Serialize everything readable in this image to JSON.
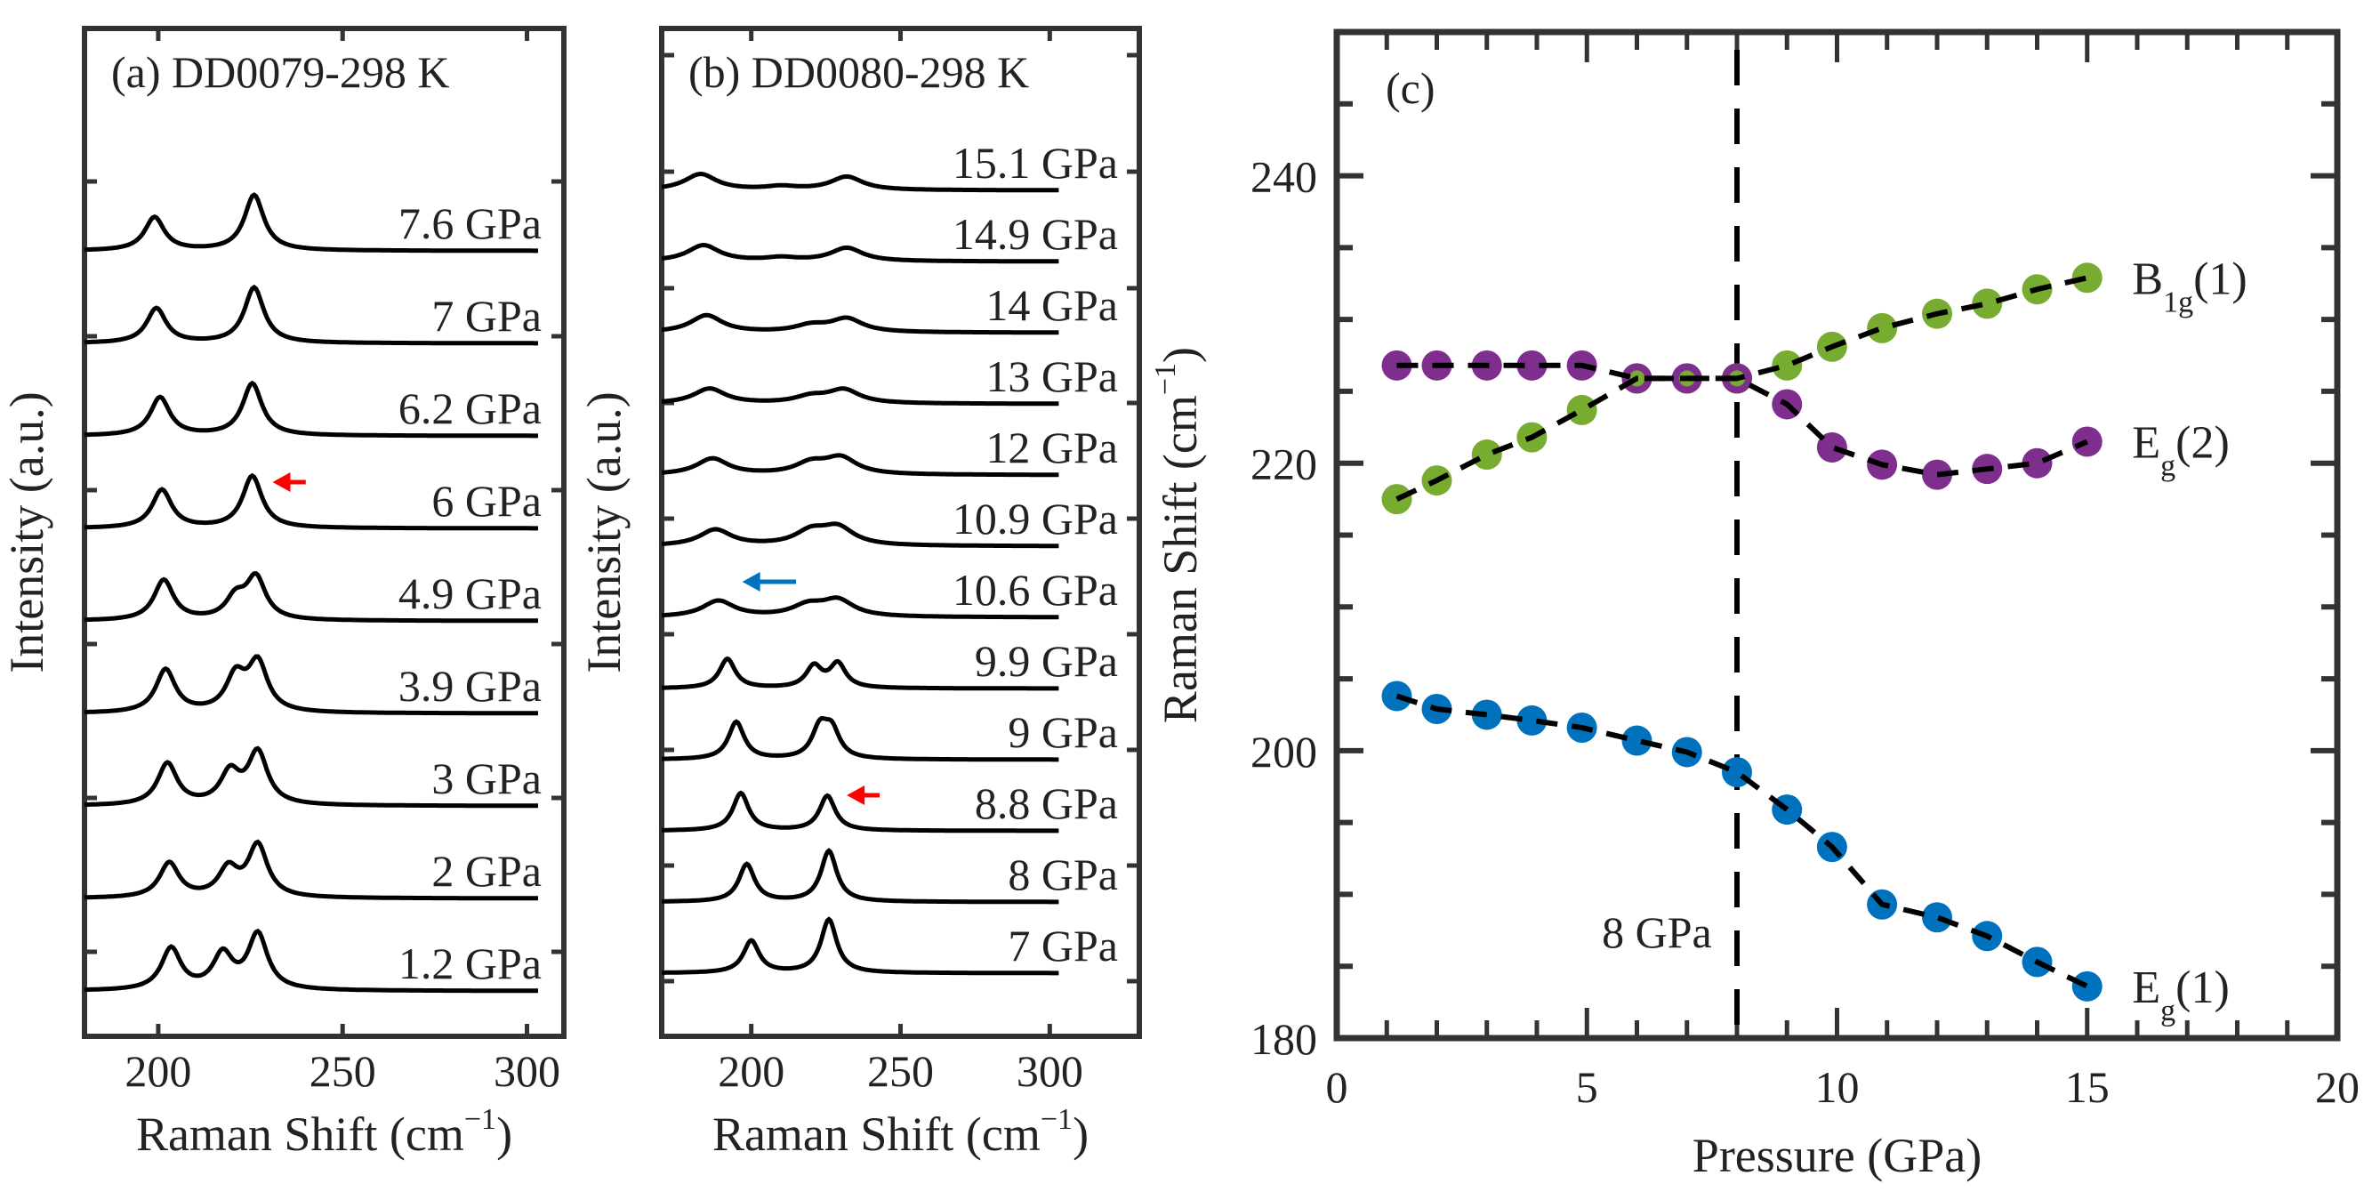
{
  "chart_data": [
    {
      "panel": "a",
      "type": "line",
      "title": "(a) DD0079-298 K",
      "xlabel": "Raman Shift (cm",
      "xlabel_sup": "−1",
      "xlabel_end": ")",
      "ylabel": "Intensity (a.u.)",
      "xlim": [
        180,
        310
      ],
      "xticks": [
        200,
        250,
        300
      ],
      "spectra": [
        {
          "label": "7.6 GPa",
          "peaks": [
            [
              199,
              0.48
            ],
            [
              226,
              0.8
            ]
          ]
        },
        {
          "label": "7 GPa",
          "peaks": [
            [
              199.5,
              0.5
            ],
            [
              226,
              0.8
            ]
          ]
        },
        {
          "label": "6.2 GPa",
          "peaks": [
            [
              200.5,
              0.55
            ],
            [
              225.5,
              0.75
            ]
          ]
        },
        {
          "label": "6 GPa",
          "peaks": [
            [
              201,
              0.55
            ],
            [
              225.5,
              0.75
            ]
          ]
        },
        {
          "label": "4.9 GPa",
          "peaks": [
            [
              201.5,
              0.58
            ],
            [
              221,
              0.3
            ],
            [
              226.5,
              0.6
            ]
          ]
        },
        {
          "label": "3.9 GPa",
          "peaks": [
            [
              202,
              0.62
            ],
            [
              221,
              0.5
            ],
            [
              227,
              0.7
            ]
          ]
        },
        {
          "label": "3 GPa",
          "peaks": [
            [
              202.5,
              0.6
            ],
            [
              219.5,
              0.45
            ],
            [
              227,
              0.75
            ]
          ]
        },
        {
          "label": "2 GPa",
          "peaks": [
            [
              203,
              0.5
            ],
            [
              219,
              0.4
            ],
            [
              227,
              0.75
            ]
          ]
        },
        {
          "label": "1.2 GPa",
          "peaks": [
            [
              203.5,
              0.6
            ],
            [
              217.5,
              0.5
            ],
            [
              227,
              0.8
            ]
          ]
        }
      ],
      "arrows": [
        {
          "spectrum": "6 GPa",
          "color": "#ff0000",
          "from": 240,
          "to": 231
        }
      ]
    },
    {
      "panel": "b",
      "type": "line",
      "title": "(b) DD0080-298 K",
      "xlabel": "Raman Shift (cm",
      "xlabel_sup": "−1",
      "xlabel_end": ")",
      "ylabel": "Intensity (a.u.)",
      "xlim": [
        170,
        330
      ],
      "xticks": [
        200,
        250,
        300
      ],
      "spectra": [
        {
          "label": "15.1 GPa",
          "peaks": [
            [
              183,
              0.3
            ],
            [
              210,
              0.06
            ],
            [
              232,
              0.25
            ]
          ]
        },
        {
          "label": "14.9 GPa",
          "peaks": [
            [
              184,
              0.3
            ],
            [
              210,
              0.06
            ],
            [
              232,
              0.25
            ]
          ]
        },
        {
          "label": "14 GPa",
          "peaks": [
            [
              185,
              0.32
            ],
            [
              220,
              0.12
            ],
            [
              232,
              0.25
            ]
          ]
        },
        {
          "label": "13 GPa",
          "peaks": [
            [
              186,
              0.28
            ],
            [
              220,
              0.12
            ],
            [
              231,
              0.25
            ]
          ]
        },
        {
          "label": "12 GPa",
          "peaks": [
            [
              187,
              0.3
            ],
            [
              220,
              0.2
            ],
            [
              230,
              0.3
            ]
          ]
        },
        {
          "label": "10.9 GPa",
          "peaks": [
            [
              188,
              0.3
            ],
            [
              220,
              0.25
            ],
            [
              229,
              0.32
            ]
          ]
        },
        {
          "label": "10.6 GPa",
          "peaks": [
            [
              189,
              0.3
            ],
            [
              219,
              0.2
            ],
            [
              229,
              0.3
            ]
          ]
        },
        {
          "label": "9.9 GPa",
          "peaks": [
            [
              192,
              0.55
            ],
            [
              221,
              0.4
            ],
            [
              229,
              0.45
            ]
          ]
        },
        {
          "label": "9 GPa",
          "peaks": [
            [
              195,
              0.7
            ],
            [
              223,
              0.55
            ],
            [
              227,
              0.5
            ]
          ]
        },
        {
          "label": "8.8 GPa",
          "peaks": [
            [
              196.5,
              0.7
            ],
            [
              225.5,
              0.65
            ]
          ]
        },
        {
          "label": "8 GPa",
          "peaks": [
            [
              198.5,
              0.7
            ],
            [
              226,
              0.95
            ]
          ]
        },
        {
          "label": "7 GPa",
          "peaks": [
            [
              200,
              0.6
            ],
            [
              226,
              1.0
            ]
          ]
        }
      ],
      "arrows": [
        {
          "spectrum": "8.8 GPa",
          "color": "#ff0000",
          "from": 243,
          "to": 232
        },
        {
          "spectrum": "10.6 GPa",
          "color": "#0072bd",
          "from": 215,
          "to": 197
        }
      ]
    },
    {
      "panel": "c",
      "type": "scatter",
      "title": "(c)",
      "xlabel": "Pressure (GPa)",
      "ylabel": "Raman Shift (cm",
      "ylabel_sup": "−1",
      "ylabel_end": ")",
      "xlim": [
        0,
        20
      ],
      "ylim": [
        180,
        250
      ],
      "xticks": [
        0,
        5,
        10,
        15,
        20
      ],
      "yticks": [
        180,
        200,
        220,
        240
      ],
      "vline": {
        "x": 8,
        "label": "8 GPa"
      },
      "x": [
        1.2,
        2,
        3,
        3.9,
        4.9,
        6,
        7,
        8,
        9,
        9.9,
        10.9,
        12,
        13,
        14,
        15
      ],
      "series": [
        {
          "name": "E",
          "sub": "g",
          "suffix": "(1)",
          "color": "#0072bd",
          "values": [
            203.8,
            202.9,
            202.5,
            202.1,
            201.6,
            200.7,
            199.9,
            198.5,
            195.9,
            193.3,
            189.3,
            188.4,
            187.1,
            185.3,
            183.6
          ]
        },
        {
          "name": "E",
          "sub": "g",
          "suffix": "(2)",
          "color": "#7e2f8e",
          "values": [
            226.8,
            226.8,
            226.8,
            226.8,
            226.8,
            225.9,
            225.9,
            225.9,
            224.1,
            221.1,
            219.9,
            219.2,
            219.6,
            220.0,
            221.5
          ]
        },
        {
          "name": "B",
          "sub": "1g",
          "suffix": "(1)",
          "color": "#77ac30",
          "values": [
            217.5,
            218.8,
            220.6,
            221.8,
            223.7,
            225.9,
            225.9,
            225.9,
            226.8,
            228.1,
            229.4,
            230.4,
            231.1,
            232.1,
            232.9
          ]
        }
      ]
    }
  ]
}
